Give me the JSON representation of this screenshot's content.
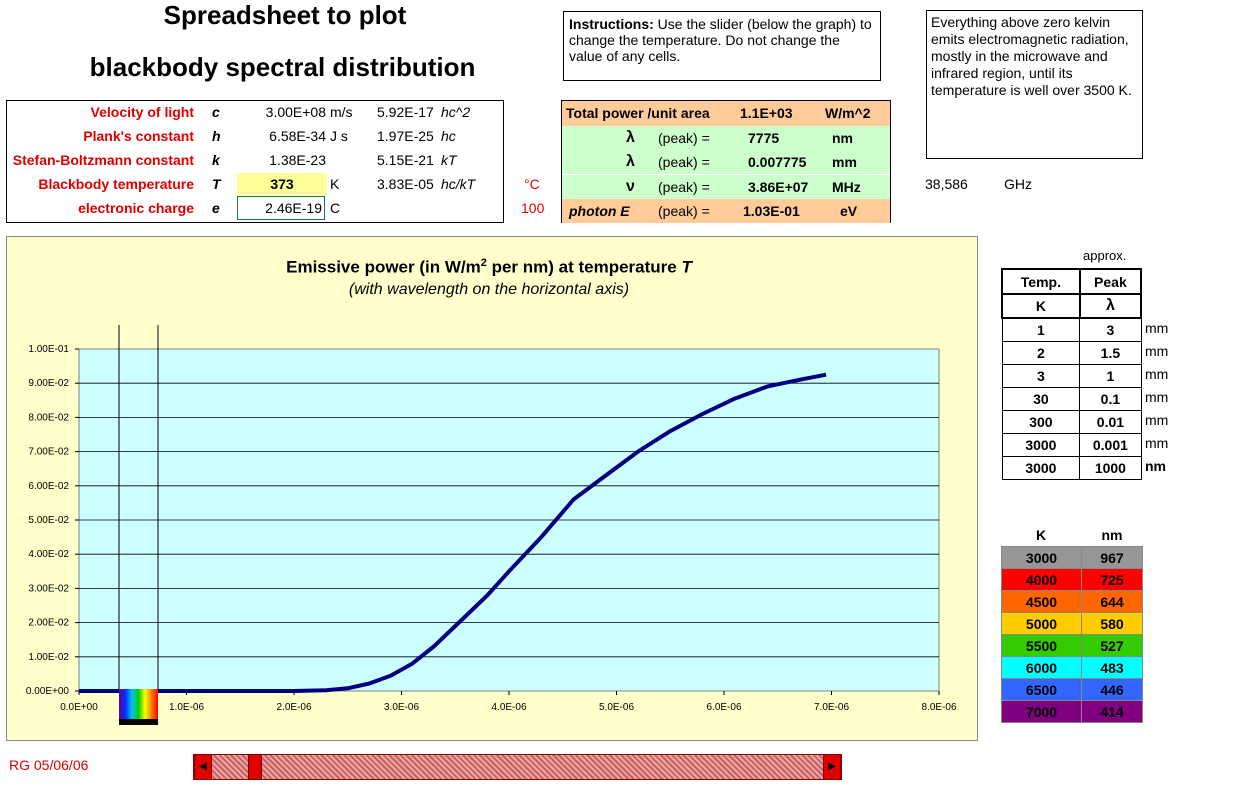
{
  "title": {
    "line1": "Spreadsheet to plot",
    "line2": "blackbody spectral distribution"
  },
  "instructions": {
    "label": "Instructions:",
    "text": " Use the slider (below the graph) to change the temperature. Do not change the value of any cells."
  },
  "note": "Everything above zero kelvin emits electromagnetic radiation, mostly in the microwave and infrared region, until its temperature is well over 3500 K.",
  "constants": [
    {
      "name": "Velocity of light",
      "sym": "c",
      "value": "3.00E+08",
      "unit": "m/s",
      "derived": "5.92E-17",
      "dlabel": "hc^2"
    },
    {
      "name": "Plank's constant",
      "sym": "h",
      "value": "6.58E-34",
      "unit": "J s",
      "derived": "1.97E-25",
      "dlabel": "hc"
    },
    {
      "name": "Stefan-Boltzmann constant",
      "sym": "k",
      "value": "1.38E-23",
      "unit": "",
      "derived": "5.15E-21",
      "dlabel": "kT"
    },
    {
      "name": "Blackbody temperature",
      "sym": "T",
      "value": "373",
      "unit": "K",
      "derived": "3.83E-05",
      "dlabel": "hc/kT"
    },
    {
      "name": "electronic charge",
      "sym": "e",
      "value": "2.46E-19",
      "unit": "C",
      "derived": "",
      "dlabel": ""
    }
  ],
  "celsius": {
    "label": "°C",
    "value": "100"
  },
  "results": {
    "total_label": "Total power /unit area",
    "total_value": "1.1E+03",
    "total_unit": "W/m^2",
    "rows": [
      {
        "sym": "λ",
        "label": "(peak)  =",
        "value": "7775",
        "unit": "nm"
      },
      {
        "sym": "λ",
        "label": "(peak)  =",
        "value": "0.007775",
        "unit": "mm"
      },
      {
        "sym": "ν",
        "label": "(peak)  =",
        "value": "3.86E+07",
        "unit": "MHz"
      }
    ],
    "photon_label": "photon E",
    "photon_peak": "(peak)  =",
    "photon_value": "1.03E-01",
    "photon_unit": "eV"
  },
  "ghz": {
    "value": "38,586",
    "unit": "GHz"
  },
  "chart": {
    "title_main": "Emissive power (in W/m",
    "title_sup": "2",
    "title_rest": " per nm) at temperature ",
    "title_T": "T",
    "subtitle": "(with wavelength on the horizontal axis)",
    "line_color": "#000080",
    "plot_bg": "#ccffff",
    "frame_bg": "#ffffcc"
  },
  "chart_data": {
    "type": "line",
    "title": "Emissive power (in W/m2 per nm) at temperature T",
    "subtitle": "(with wavelength on the horizontal axis)",
    "xlabel": "",
    "ylabel": "",
    "xlim": [
      0,
      8e-06
    ],
    "ylim": [
      0,
      0.1
    ],
    "xticks": [
      "0.0E+00",
      "1.0E-06",
      "2.0E-06",
      "3.0E-06",
      "4.0E-06",
      "5.0E-06",
      "6.0E-06",
      "7.0E-06",
      "8.0E-06"
    ],
    "yticks": [
      "0.00E+00",
      "1.00E-02",
      "2.00E-02",
      "3.00E-02",
      "4.00E-02",
      "5.00E-02",
      "6.00E-02",
      "7.00E-02",
      "8.00E-02",
      "9.00E-02",
      "1.00E-01"
    ],
    "grid": true,
    "series": [
      {
        "x": [
          0,
          1e-06,
          2e-06,
          2.3e-06,
          2.5e-06,
          2.7e-06,
          2.9e-06,
          3.1e-06,
          3.3e-06,
          3.5e-06,
          3.8e-06,
          4e-06,
          4.3e-06,
          4.6e-06,
          4.9e-06,
          5.2e-06,
          5.5e-06,
          5.8e-06,
          6.1e-06,
          6.4e-06,
          6.7e-06,
          6.95e-06
        ],
        "y": [
          0,
          0,
          0,
          0.0002,
          0.0008,
          0.0022,
          0.0045,
          0.008,
          0.013,
          0.019,
          0.028,
          0.035,
          0.045,
          0.056,
          0.063,
          0.07,
          0.076,
          0.081,
          0.0855,
          0.089,
          0.091,
          0.0925
        ]
      }
    ]
  },
  "approx_label": "approx.",
  "peak_table": {
    "h1": "Temp.",
    "h2": "Peak",
    "u1": "K",
    "u2": "λ",
    "rows": [
      {
        "t": "1",
        "p": "3",
        "u": "mm"
      },
      {
        "t": "2",
        "p": "1.5",
        "u": "mm"
      },
      {
        "t": "3",
        "p": "1",
        "u": "mm"
      },
      {
        "t": "30",
        "p": "0.1",
        "u": "mm"
      },
      {
        "t": "300",
        "p": "0.01",
        "u": "mm"
      },
      {
        "t": "3000",
        "p": "0.001",
        "u": "mm"
      },
      {
        "t": "3000",
        "p": "1000",
        "u": "nm"
      }
    ]
  },
  "color_table": {
    "h1": "K",
    "h2": "nm",
    "rows": [
      {
        "k": "3000",
        "nm": "967",
        "color": "#969696"
      },
      {
        "k": "4000",
        "nm": "725",
        "color": "#ff0000"
      },
      {
        "k": "4500",
        "nm": "644",
        "color": "#ff6600"
      },
      {
        "k": "5000",
        "nm": "580",
        "color": "#ffcc00"
      },
      {
        "k": "5500",
        "nm": "527",
        "color": "#33cc00"
      },
      {
        "k": "6000",
        "nm": "483",
        "color": "#00ffff"
      },
      {
        "k": "6500",
        "nm": "446",
        "color": "#3366ff"
      },
      {
        "k": "7000",
        "nm": "414",
        "color": "#800080"
      }
    ]
  },
  "footer": "RG 05/06/06",
  "slider": {
    "value": 0.03
  }
}
